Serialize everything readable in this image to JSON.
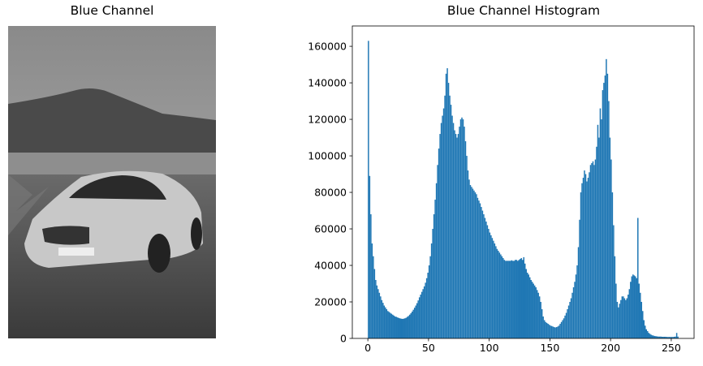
{
  "chart_data": [
    {
      "type": "image",
      "title": "Blue Channel"
    },
    {
      "type": "histogram",
      "title": "Blue Channel Histogram",
      "color": "#1f77b4",
      "bins": [
        0,
        1,
        2,
        3,
        4,
        5,
        6,
        7,
        8,
        9,
        10,
        11,
        12,
        13,
        14,
        15,
        16,
        17,
        18,
        19,
        20,
        21,
        22,
        23,
        24,
        25,
        26,
        27,
        28,
        29,
        30,
        31,
        32,
        33,
        34,
        35,
        36,
        37,
        38,
        39,
        40,
        41,
        42,
        43,
        44,
        45,
        46,
        47,
        48,
        49,
        50,
        51,
        52,
        53,
        54,
        55,
        56,
        57,
        58,
        59,
        60,
        61,
        62,
        63,
        64,
        65,
        66,
        67,
        68,
        69,
        70,
        71,
        72,
        73,
        74,
        75,
        76,
        77,
        78,
        79,
        80,
        81,
        82,
        83,
        84,
        85,
        86,
        87,
        88,
        89,
        90,
        91,
        92,
        93,
        94,
        95,
        96,
        97,
        98,
        99,
        100,
        101,
        102,
        103,
        104,
        105,
        106,
        107,
        108,
        109,
        110,
        111,
        112,
        113,
        114,
        115,
        116,
        117,
        118,
        119,
        120,
        121,
        122,
        123,
        124,
        125,
        126,
        127,
        128,
        129,
        130,
        131,
        132,
        133,
        134,
        135,
        136,
        137,
        138,
        139,
        140,
        141,
        142,
        143,
        144,
        145,
        146,
        147,
        148,
        149,
        150,
        151,
        152,
        153,
        154,
        155,
        156,
        157,
        158,
        159,
        160,
        161,
        162,
        163,
        164,
        165,
        166,
        167,
        168,
        169,
        170,
        171,
        172,
        173,
        174,
        175,
        176,
        177,
        178,
        179,
        180,
        181,
        182,
        183,
        184,
        185,
        186,
        187,
        188,
        189,
        190,
        191,
        192,
        193,
        194,
        195,
        196,
        197,
        198,
        199,
        200,
        201,
        202,
        203,
        204,
        205,
        206,
        207,
        208,
        209,
        210,
        211,
        212,
        213,
        214,
        215,
        216,
        217,
        218,
        219,
        220,
        221,
        222,
        223,
        224,
        225,
        226,
        227,
        228,
        229,
        230,
        231,
        232,
        233,
        234,
        235,
        236,
        237,
        238,
        239,
        240,
        241,
        242,
        243,
        244,
        245,
        246,
        247,
        248,
        249,
        250,
        251,
        252,
        253,
        254,
        255,
        256
      ],
      "values": [
        163000,
        89000,
        68000,
        52000,
        45000,
        38000,
        32000,
        29000,
        27000,
        25000,
        23000,
        21000,
        19500,
        18000,
        17000,
        16000,
        15000,
        14500,
        14000,
        13500,
        13000,
        12500,
        12000,
        11800,
        11500,
        11200,
        11000,
        10800,
        10700,
        10800,
        11000,
        11300,
        11800,
        12300,
        13000,
        13800,
        14700,
        15700,
        16800,
        18000,
        19300,
        20800,
        22500,
        24000,
        25500,
        27000,
        28500,
        30500,
        33000,
        36000,
        40000,
        45000,
        52000,
        60000,
        68000,
        76000,
        85000,
        95000,
        104000,
        112000,
        118000,
        122000,
        126000,
        133000,
        145000,
        148000,
        140000,
        133000,
        128000,
        122000,
        118000,
        114000,
        112000,
        110000,
        112000,
        116000,
        120000,
        121000,
        120000,
        116000,
        108000,
        100000,
        92000,
        87000,
        84000,
        83000,
        82000,
        81000,
        80000,
        79000,
        77000,
        75500,
        74000,
        72000,
        70000,
        68000,
        66000,
        64000,
        62000,
        60000,
        58000,
        56500,
        55000,
        53500,
        52000,
        50500,
        49000,
        48000,
        47000,
        46000,
        45000,
        44000,
        43000,
        42500,
        42500,
        42500,
        42500,
        42500,
        42800,
        42500,
        42500,
        43000,
        43000,
        42500,
        43000,
        43500,
        44000,
        43000,
        44500,
        41000,
        38000,
        36000,
        35000,
        33500,
        32000,
        31000,
        30000,
        29000,
        28000,
        26500,
        25000,
        23000,
        20000,
        16000,
        12000,
        10000,
        9000,
        8500,
        8000,
        7500,
        7000,
        6800,
        6500,
        6200,
        6000,
        6200,
        6500,
        7000,
        8000,
        9000,
        10000,
        11000,
        12500,
        14000,
        16000,
        18000,
        20000,
        22000,
        25000,
        28000,
        31000,
        35000,
        40000,
        50000,
        65000,
        80000,
        85000,
        88000,
        92000,
        90000,
        86000,
        88000,
        91000,
        95000,
        96000,
        97000,
        95000,
        98000,
        105000,
        117000,
        110000,
        126000,
        120000,
        136000,
        140000,
        144000,
        153000,
        145000,
        130000,
        110000,
        98000,
        80000,
        62000,
        45000,
        30000,
        20000,
        17000,
        19000,
        21000,
        23000,
        23000,
        22000,
        21000,
        22000,
        24000,
        27000,
        31000,
        34000,
        35000,
        34500,
        34000,
        33000,
        66000,
        30000,
        25000,
        20000,
        15000,
        10000,
        7000,
        5000,
        4000,
        3000,
        2500,
        2000,
        1700,
        1500,
        1300,
        1200,
        1100,
        1000,
        1000,
        1000,
        900,
        900,
        900,
        900,
        800,
        800,
        800,
        800,
        800,
        800,
        900,
        1000,
        3000,
        1000
      ],
      "xlim": [
        -12.8,
        268.8
      ],
      "ylim": [
        0,
        171150
      ],
      "xticks": [
        0,
        50,
        100,
        150,
        200,
        250
      ],
      "yticks": [
        0,
        20000,
        40000,
        60000,
        80000,
        100000,
        120000,
        140000,
        160000
      ]
    }
  ]
}
